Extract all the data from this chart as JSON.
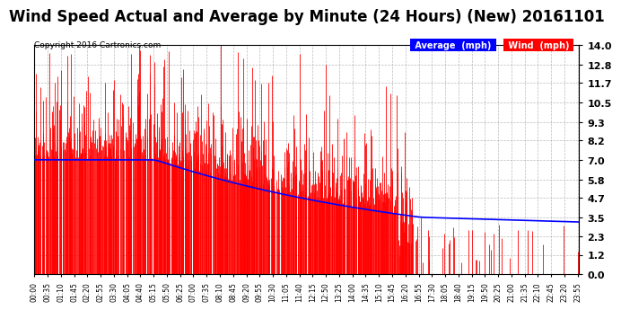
{
  "title": "Wind Speed Actual and Average by Minute (24 Hours) (New) 20161101",
  "copyright": "Copyright 2016 Cartronics.com",
  "yticks": [
    0.0,
    1.2,
    2.3,
    3.5,
    4.7,
    5.8,
    7.0,
    8.2,
    9.3,
    10.5,
    11.7,
    12.8,
    14.0
  ],
  "ymin": 0.0,
  "ymax": 14.0,
  "avg_color": "#0000ff",
  "wind_color": "#ff0000",
  "bg_color": "#ffffff",
  "grid_color": "#aaaaaa",
  "legend_avg_bg": "#0000ff",
  "legend_wind_bg": "#ff0000",
  "title_fontsize": 12,
  "copyright_fontsize": 6.5,
  "n_minutes": 1440,
  "tick_interval": 35
}
